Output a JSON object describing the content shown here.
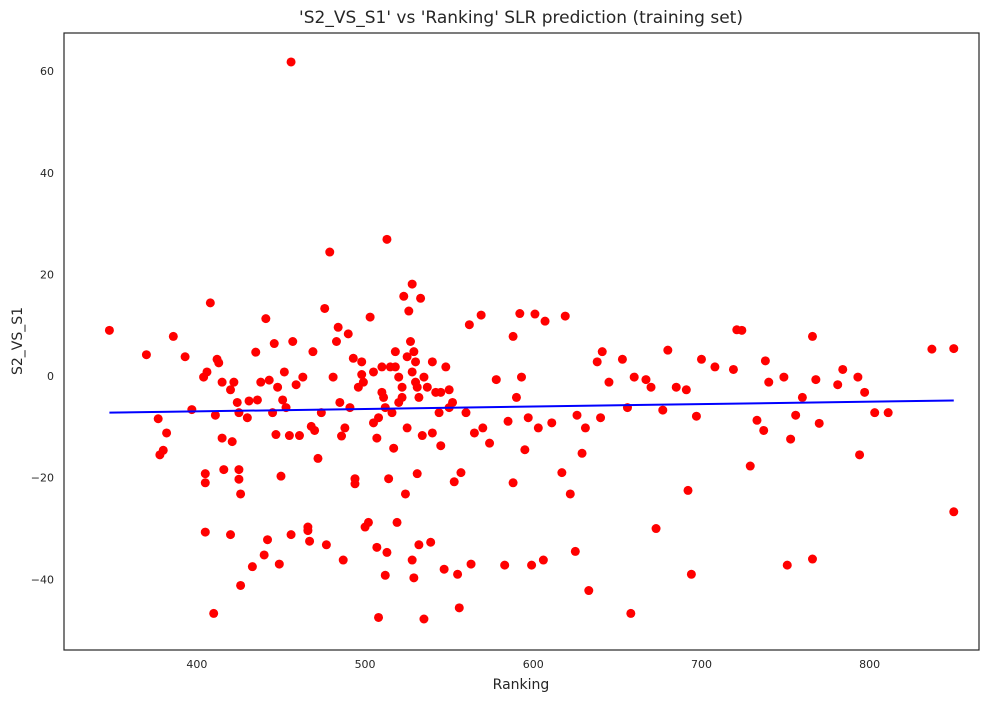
{
  "chart_data": {
    "type": "scatter",
    "title": "'S2_VS_S1' vs 'Ranking' SLR prediction (training set)",
    "x_label": "Ranking",
    "y_label": "S2_VS_S1",
    "xlim": [
      321,
      865
    ],
    "ylim": [
      -53.7,
      67.7
    ],
    "xticks": [
      400,
      500,
      600,
      700,
      800
    ],
    "yticks": [
      {
        "value": -40,
        "label": "−40"
      },
      {
        "value": -20,
        "label": "−20"
      },
      0,
      20,
      40,
      60
    ],
    "grid": false,
    "series": [
      {
        "type": "scatter",
        "color": "#ff0000",
        "x": [
          348,
          370,
          377,
          378,
          380,
          382,
          386,
          393,
          397,
          404,
          406,
          405,
          405,
          405,
          408,
          410,
          411,
          412,
          413,
          415,
          415,
          416,
          420,
          420,
          421,
          422,
          424,
          425,
          425,
          426,
          425,
          426,
          430,
          431,
          433,
          435,
          436,
          438,
          440,
          441,
          442,
          443,
          445,
          446,
          447,
          448,
          449,
          450,
          451,
          452,
          453,
          455,
          456,
          456,
          457,
          459,
          461,
          463,
          466,
          466,
          467,
          468,
          469,
          470,
          472,
          474,
          476,
          477,
          479,
          481,
          483,
          484,
          485,
          486,
          487,
          488,
          490,
          491,
          493,
          494,
          494,
          496,
          498,
          499,
          500,
          502,
          503,
          505,
          507,
          508,
          507,
          510,
          511,
          512,
          513,
          513,
          514,
          516,
          517,
          518,
          519,
          520,
          522,
          523,
          524,
          525,
          526,
          528,
          528,
          529,
          530,
          531,
          532,
          533,
          534,
          535,
          537,
          539,
          540,
          542,
          544,
          545,
          547,
          548,
          550,
          552,
          553,
          555,
          556,
          557,
          560,
          562,
          563,
          565,
          569,
          570,
          574,
          578,
          583,
          585,
          588,
          588,
          590,
          592,
          593,
          595,
          597,
          599,
          601,
          603,
          606,
          607,
          611,
          617,
          619,
          622,
          625,
          626,
          629,
          631,
          633,
          638,
          640,
          641,
          645,
          653,
          656,
          658,
          660,
          667,
          670,
          673,
          677,
          680,
          685,
          691,
          692,
          694,
          697,
          700,
          708,
          719,
          721,
          724,
          729,
          733,
          737,
          738,
          740,
          749,
          751,
          753,
          756,
          760,
          766,
          766,
          768,
          770,
          781,
          784,
          793,
          794,
          797,
          803,
          811,
          837,
          850,
          850,
          505,
          510,
          515,
          520,
          525,
          530,
          535,
          540,
          512,
          522,
          528,
          532,
          518,
          508,
          498,
          545,
          550,
          527,
          529,
          531
        ],
        "values": [
          9.2,
          4.4,
          -8.2,
          -15.3,
          -14.4,
          -11,
          8,
          4,
          -6.4,
          0,
          1,
          -19,
          -20.8,
          -30.5,
          14.6,
          -46.5,
          -7.5,
          3.5,
          2.8,
          -1,
          -12,
          -18.2,
          -31,
          -2.5,
          -12.7,
          -1,
          -5,
          -7,
          -18.2,
          -23,
          -20.1,
          -41,
          -8,
          -4.7,
          -37.3,
          4.9,
          -4.5,
          -1,
          -35,
          11.5,
          -32,
          -0.6,
          -7,
          6.6,
          -11.3,
          -2,
          -36.8,
          -19.5,
          -4.5,
          1,
          -6,
          -11.5,
          62,
          -31,
          7,
          -1.5,
          -11.5,
          0,
          -29.5,
          -30.2,
          -32.3,
          -9.7,
          5,
          -10.5,
          -16,
          -7,
          13.5,
          -33,
          24.6,
          0,
          7,
          9.8,
          -5,
          -11.6,
          -36,
          -10,
          8.5,
          -6,
          3.7,
          -20,
          -21,
          -2,
          3,
          -1,
          -29.5,
          -28.6,
          11.8,
          -9,
          -12,
          -47.3,
          -33.5,
          2,
          -4,
          -39,
          27.1,
          -34.5,
          -20,
          -7,
          -14,
          5,
          -28.6,
          0,
          -4,
          15.9,
          -23,
          -10,
          13,
          18.3,
          -36,
          -39.5,
          3,
          -19,
          -33,
          15.5,
          -11.5,
          -47.6,
          -2,
          -32.5,
          -11,
          -3,
          -7,
          -13.5,
          -37.8,
          2,
          -2.5,
          -5,
          -20.6,
          -38.8,
          -45.4,
          -18.8,
          -7,
          10.3,
          -36.8,
          -11,
          12.2,
          -10,
          -13,
          -0.5,
          -37,
          -8.7,
          8,
          -20.8,
          -4,
          12.5,
          0,
          -14.3,
          -8,
          -37,
          12.4,
          -10,
          -36,
          11,
          -9,
          -18.8,
          12,
          -23,
          -34.3,
          -7.5,
          -15,
          -10,
          -42,
          3,
          -8,
          5,
          -1,
          3.5,
          -6,
          -46.5,
          0,
          -0.5,
          -2,
          -29.8,
          -6.5,
          5.3,
          -2,
          -2.5,
          -22.3,
          -38.8,
          -7.7,
          3.5,
          2,
          1.5,
          9.3,
          9.2,
          -17.5,
          -8.5,
          -10.5,
          3.2,
          -1,
          0,
          -37,
          -12.2,
          -7.5,
          -4,
          8,
          -35.8,
          -0.5,
          -9.1,
          -1.5,
          1.5,
          0,
          -15.3,
          -3,
          -7,
          -7,
          5.5,
          5.6,
          -26.5,
          1,
          -3,
          2,
          -5,
          4,
          -1,
          0,
          3,
          -6,
          -2,
          1,
          -4,
          2,
          -8,
          0.5,
          -3,
          -6,
          7,
          5,
          -2
        ]
      },
      {
        "type": "line",
        "color": "#0000ff",
        "x": [
          348,
          850
        ],
        "values": [
          -7.0,
          -4.6
        ]
      }
    ]
  }
}
